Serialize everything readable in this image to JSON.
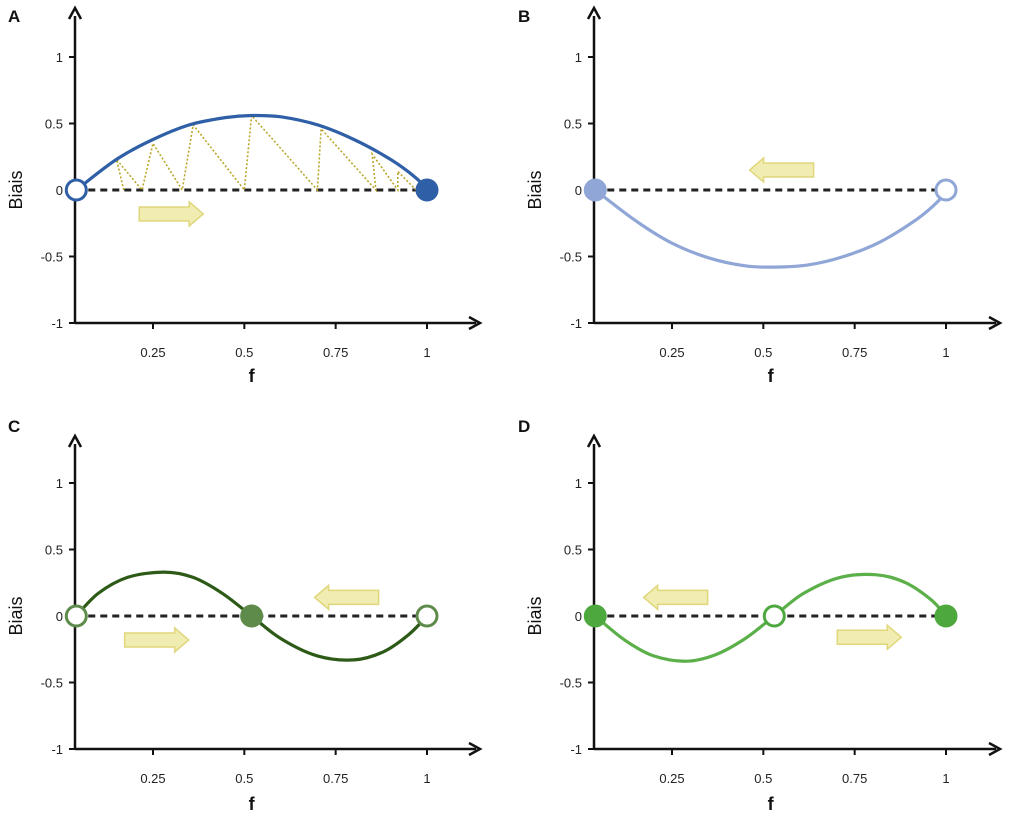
{
  "chart_data": [
    {
      "panel": "A",
      "type": "line",
      "xlabel": "f",
      "ylabel": "Biais",
      "xlim": [
        0.03,
        1.12
      ],
      "ylim": [
        -1,
        1.3
      ],
      "x_ticks": [
        {
          "v": 0.25,
          "label": "0.25"
        },
        {
          "v": 0.5,
          "label": "0.5"
        },
        {
          "v": 0.75,
          "label": "0.75"
        },
        {
          "v": 1,
          "label": "1"
        }
      ],
      "y_ticks": [
        {
          "v": 1,
          "label": "1"
        },
        {
          "v": 0.5,
          "label": "0.5"
        },
        {
          "v": 0,
          "label": "0"
        },
        {
          "v": -0.5,
          "label": "-0.5"
        },
        {
          "v": -1,
          "label": "-1"
        }
      ],
      "curve": {
        "color": "#2f5fa6",
        "points": [
          [
            0.04,
            0
          ],
          [
            0.15,
            0.23
          ],
          [
            0.25,
            0.38
          ],
          [
            0.35,
            0.49
          ],
          [
            0.45,
            0.545
          ],
          [
            0.52,
            0.56
          ],
          [
            0.6,
            0.55
          ],
          [
            0.7,
            0.49
          ],
          [
            0.8,
            0.38
          ],
          [
            0.9,
            0.23
          ],
          [
            0.97,
            0.09
          ],
          [
            1.0,
            0
          ]
        ]
      },
      "points": [
        {
          "x": 0.04,
          "y": 0,
          "filled": false,
          "color": "#2f5fa6"
        },
        {
          "x": 1.0,
          "y": 0,
          "filled": true,
          "color": "#2f5fa6"
        }
      ],
      "arrows": [
        {
          "x": 0.3,
          "y": -0.18,
          "dir": "right"
        }
      ],
      "zigzag": {
        "color": "#b9a72a",
        "points": [
          [
            0.17,
            0
          ],
          [
            0.15,
            0.23
          ],
          [
            0.22,
            0
          ],
          [
            0.25,
            0.35
          ],
          [
            0.33,
            0
          ],
          [
            0.36,
            0.49
          ],
          [
            0.5,
            0
          ],
          [
            0.52,
            0.56
          ],
          [
            0.7,
            0
          ],
          [
            0.71,
            0.46
          ],
          [
            0.86,
            0
          ],
          [
            0.85,
            0.27
          ],
          [
            0.92,
            0
          ],
          [
            0.92,
            0.14
          ],
          [
            0.97,
            0
          ]
        ]
      }
    },
    {
      "panel": "B",
      "type": "line",
      "xlabel": "f",
      "ylabel": "Biais",
      "xlim": [
        0.03,
        1.12
      ],
      "ylim": [
        -1,
        1.3
      ],
      "x_ticks": [
        {
          "v": 0.25,
          "label": "0.25"
        },
        {
          "v": 0.5,
          "label": "0.5"
        },
        {
          "v": 0.75,
          "label": "0.75"
        },
        {
          "v": 1,
          "label": "1"
        }
      ],
      "y_ticks": [
        {
          "v": 1,
          "label": "1"
        },
        {
          "v": 0.5,
          "label": "0.5"
        },
        {
          "v": 0,
          "label": "0"
        },
        {
          "v": -0.5,
          "label": "-0.5"
        },
        {
          "v": -1,
          "label": "-1"
        }
      ],
      "curve": {
        "color": "#8fa6d6",
        "points": [
          [
            0.04,
            0
          ],
          [
            0.15,
            -0.23
          ],
          [
            0.25,
            -0.4
          ],
          [
            0.35,
            -0.51
          ],
          [
            0.45,
            -0.57
          ],
          [
            0.53,
            -0.58
          ],
          [
            0.62,
            -0.565
          ],
          [
            0.72,
            -0.5
          ],
          [
            0.82,
            -0.39
          ],
          [
            0.92,
            -0.22
          ],
          [
            0.98,
            -0.08
          ],
          [
            1.0,
            0
          ]
        ]
      },
      "points": [
        {
          "x": 0.04,
          "y": 0,
          "filled": true,
          "color": "#8fa6d6"
        },
        {
          "x": 1.0,
          "y": 0,
          "filled": false,
          "color": "#8fa6d6"
        }
      ],
      "arrows": [
        {
          "x": 0.55,
          "y": 0.15,
          "dir": "left"
        }
      ]
    },
    {
      "panel": "C",
      "type": "line",
      "xlabel": "f",
      "ylabel": "Biais",
      "xlim": [
        0.03,
        1.12
      ],
      "ylim": [
        -1,
        1.3
      ],
      "x_ticks": [
        {
          "v": 0.25,
          "label": "0.25"
        },
        {
          "v": 0.5,
          "label": "0.5"
        },
        {
          "v": 0.75,
          "label": "0.75"
        },
        {
          "v": 1,
          "label": "1"
        }
      ],
      "y_ticks": [
        {
          "v": 1,
          "label": "1"
        },
        {
          "v": 0.5,
          "label": "0.5"
        },
        {
          "v": 0,
          "label": "0"
        },
        {
          "v": -0.5,
          "label": "-0.5"
        },
        {
          "v": -1,
          "label": "-1"
        }
      ],
      "curve": {
        "color": "#2d5a17",
        "points": [
          [
            0.04,
            0
          ],
          [
            0.1,
            0.17
          ],
          [
            0.18,
            0.29
          ],
          [
            0.28,
            0.33
          ],
          [
            0.36,
            0.29
          ],
          [
            0.44,
            0.17
          ],
          [
            0.52,
            0
          ],
          [
            0.6,
            -0.17
          ],
          [
            0.7,
            -0.3
          ],
          [
            0.8,
            -0.33
          ],
          [
            0.88,
            -0.27
          ],
          [
            0.95,
            -0.14
          ],
          [
            1.0,
            0
          ]
        ]
      },
      "points": [
        {
          "x": 0.04,
          "y": 0,
          "filled": false,
          "color": "#5e8a4a"
        },
        {
          "x": 0.52,
          "y": 0,
          "filled": true,
          "color": "#5e8a4a"
        },
        {
          "x": 1.0,
          "y": 0,
          "filled": false,
          "color": "#5e8a4a"
        }
      ],
      "arrows": [
        {
          "x": 0.26,
          "y": -0.18,
          "dir": "right"
        },
        {
          "x": 0.78,
          "y": 0.14,
          "dir": "left"
        }
      ]
    },
    {
      "panel": "D",
      "type": "line",
      "xlabel": "f",
      "ylabel": "Biais",
      "xlim": [
        0.03,
        1.12
      ],
      "ylim": [
        -1,
        1.3
      ],
      "x_ticks": [
        {
          "v": 0.25,
          "label": "0.25"
        },
        {
          "v": 0.5,
          "label": "0.5"
        },
        {
          "v": 0.75,
          "label": "0.75"
        },
        {
          "v": 1,
          "label": "1"
        }
      ],
      "y_ticks": [
        {
          "v": 1,
          "label": "1"
        },
        {
          "v": 0.5,
          "label": "0.5"
        },
        {
          "v": 0,
          "label": "0"
        },
        {
          "v": -0.5,
          "label": "-0.5"
        },
        {
          "v": -1,
          "label": "-1"
        }
      ],
      "curve": {
        "color": "#5cb04a",
        "points": [
          [
            0.04,
            0
          ],
          [
            0.12,
            -0.18
          ],
          [
            0.2,
            -0.3
          ],
          [
            0.29,
            -0.34
          ],
          [
            0.37,
            -0.29
          ],
          [
            0.45,
            -0.17
          ],
          [
            0.53,
            0
          ],
          [
            0.61,
            0.17
          ],
          [
            0.71,
            0.29
          ],
          [
            0.81,
            0.31
          ],
          [
            0.89,
            0.25
          ],
          [
            0.96,
            0.12
          ],
          [
            1.0,
            0
          ]
        ]
      },
      "points": [
        {
          "x": 0.04,
          "y": 0,
          "filled": true,
          "color": "#4da83d"
        },
        {
          "x": 0.53,
          "y": 0,
          "filled": false,
          "color": "#4da83d"
        },
        {
          "x": 1.0,
          "y": 0,
          "filled": true,
          "color": "#4da83d"
        }
      ],
      "arrows": [
        {
          "x": 0.26,
          "y": 0.14,
          "dir": "left"
        },
        {
          "x": 0.79,
          "y": -0.16,
          "dir": "right"
        }
      ]
    }
  ],
  "colors": {
    "axis": "#111111",
    "baseline_dash": "#222222",
    "arrow_fill": "#f1edb2",
    "arrow_stroke": "#e0d67a"
  }
}
